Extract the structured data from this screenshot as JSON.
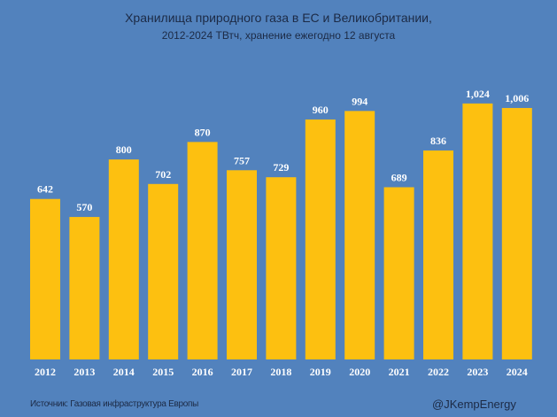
{
  "chart_data": {
    "type": "bar",
    "title": "Хранилища природного газа в ЕС и Великобритании,",
    "subtitle": "2012-2024 ТВтч, хранение ежегодно 12 августа",
    "xlabel": "",
    "ylabel": "",
    "categories": [
      "2012",
      "2013",
      "2014",
      "2015",
      "2016",
      "2017",
      "2018",
      "2019",
      "2020",
      "2021",
      "2022",
      "2023",
      "2024"
    ],
    "values": [
      642,
      570,
      800,
      702,
      870,
      757,
      729,
      960,
      994,
      689,
      836,
      1024,
      1006
    ],
    "value_labels": [
      "642",
      "570",
      "800",
      "702",
      "870",
      "757",
      "729",
      "960",
      "994",
      "689",
      "836",
      "1,024",
      "1,006"
    ],
    "ylim": [
      0,
      1438
    ],
    "grid": false,
    "bar_color": "#fdc010"
  },
  "footer": {
    "source": "Источник: Газовая инфраструктура Европы",
    "handle": "@JKempEnergy"
  }
}
